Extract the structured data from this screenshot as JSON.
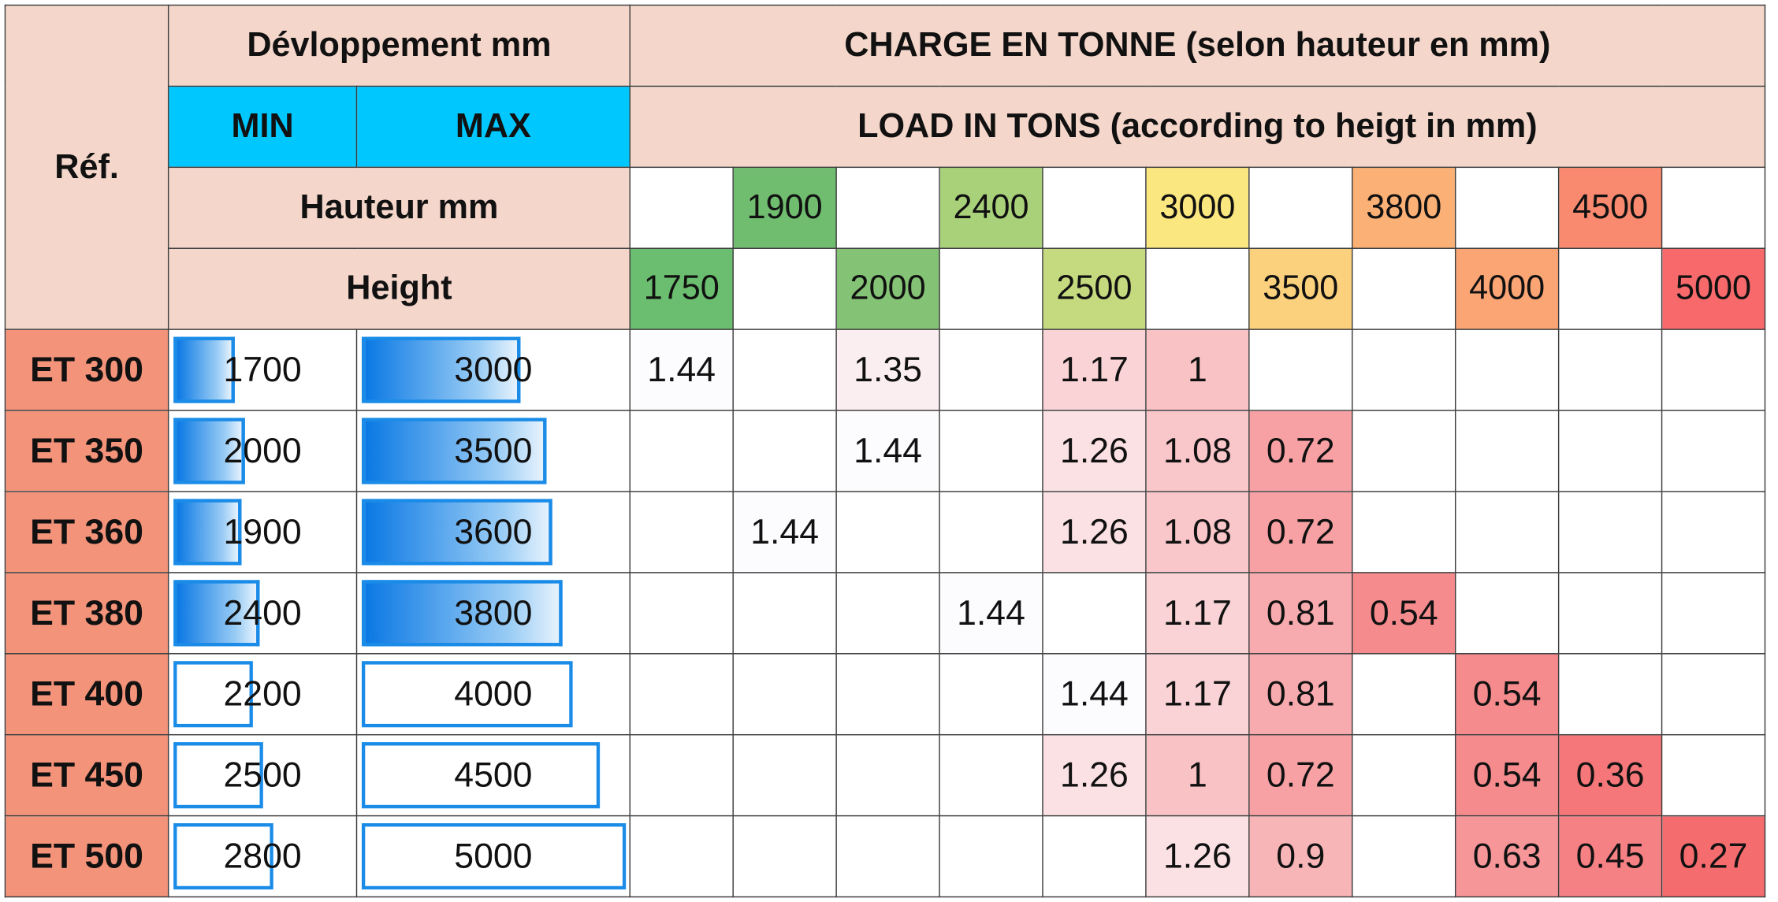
{
  "header": {
    "ref_label": "Réf.",
    "dev_label": "Dévloppement mm",
    "min_label": "MIN",
    "max_label": "MAX",
    "charge_label": "CHARGE EN TONNE (selon hauteur en mm)",
    "load_label": "LOAD IN TONS (according to heigt in mm)",
    "hauteur_label": "Hauteur mm",
    "height_label": "Height"
  },
  "heights": [
    {
      "value": "1750",
      "color": "#6bbd6f"
    },
    {
      "value": "1900",
      "color": "#70bd70"
    },
    {
      "value": "2000",
      "color": "#84c375"
    },
    {
      "value": "2400",
      "color": "#a9d17a"
    },
    {
      "value": "2500",
      "color": "#c5da7e"
    },
    {
      "value": "3000",
      "color": "#fbe77f"
    },
    {
      "value": "3500",
      "color": "#fcd17d"
    },
    {
      "value": "3800",
      "color": "#fbb076"
    },
    {
      "value": "4000",
      "color": "#fba575"
    },
    {
      "value": "4500",
      "color": "#f98a6f"
    },
    {
      "value": "5000",
      "color": "#f8696b"
    }
  ],
  "dev_scale_max": 5000,
  "rows": [
    {
      "ref": "ET 300",
      "min": "1700",
      "max": "3000",
      "min_filled": true,
      "max_filled": true,
      "loads": [
        "1.44",
        "",
        "1.35",
        "",
        "1.17",
        "1",
        "",
        "",
        "",
        "",
        ""
      ]
    },
    {
      "ref": "ET 350",
      "min": "2000",
      "max": "3500",
      "min_filled": true,
      "max_filled": true,
      "loads": [
        "",
        "",
        "1.44",
        "",
        "1.26",
        "1.08",
        "0.72",
        "",
        "",
        "",
        ""
      ]
    },
    {
      "ref": "ET 360",
      "min": "1900",
      "max": "3600",
      "min_filled": true,
      "max_filled": true,
      "loads": [
        "",
        "1.44",
        "",
        "",
        "1.26",
        "1.08",
        "0.72",
        "",
        "",
        "",
        ""
      ]
    },
    {
      "ref": "ET 380",
      "min": "2400",
      "max": "3800",
      "min_filled": true,
      "max_filled": true,
      "loads": [
        "",
        "",
        "",
        "1.44",
        "",
        "1.17",
        "0.81",
        "0.54",
        "",
        "",
        ""
      ]
    },
    {
      "ref": "ET 400",
      "min": "2200",
      "max": "4000",
      "min_filled": false,
      "max_filled": false,
      "loads": [
        "",
        "",
        "",
        "",
        "1.44",
        "1.17",
        "0.81",
        "",
        "0.54",
        "",
        ""
      ]
    },
    {
      "ref": "ET 450",
      "min": "2500",
      "max": "4500",
      "min_filled": false,
      "max_filled": false,
      "loads": [
        "",
        "",
        "",
        "",
        "1.26",
        "1",
        "0.72",
        "",
        "0.54",
        "0.36",
        ""
      ]
    },
    {
      "ref": "ET 500",
      "min": "2800",
      "max": "5000",
      "min_filled": false,
      "max_filled": false,
      "loads": [
        "",
        "",
        "",
        "",
        "",
        "1.26",
        "0.9",
        "",
        "0.63",
        "0.45",
        "0.27"
      ]
    }
  ],
  "load_colors": {
    "1.44": "#fcfcff",
    "1.35": "#fbeef1",
    "1.26": "#fbe1e4",
    "1.17": "#fad3d6",
    "1.08": "#f9c6c9",
    "1": "#f9c2c5",
    "0.9": "#f8b5b8",
    "0.81": "#f8abae",
    "0.72": "#f7a1a4",
    "0.63": "#f79699",
    "0.54": "#f68b8e",
    "0.45": "#f68184",
    "0.36": "#f57779",
    "0.27": "#f56c6f"
  }
}
